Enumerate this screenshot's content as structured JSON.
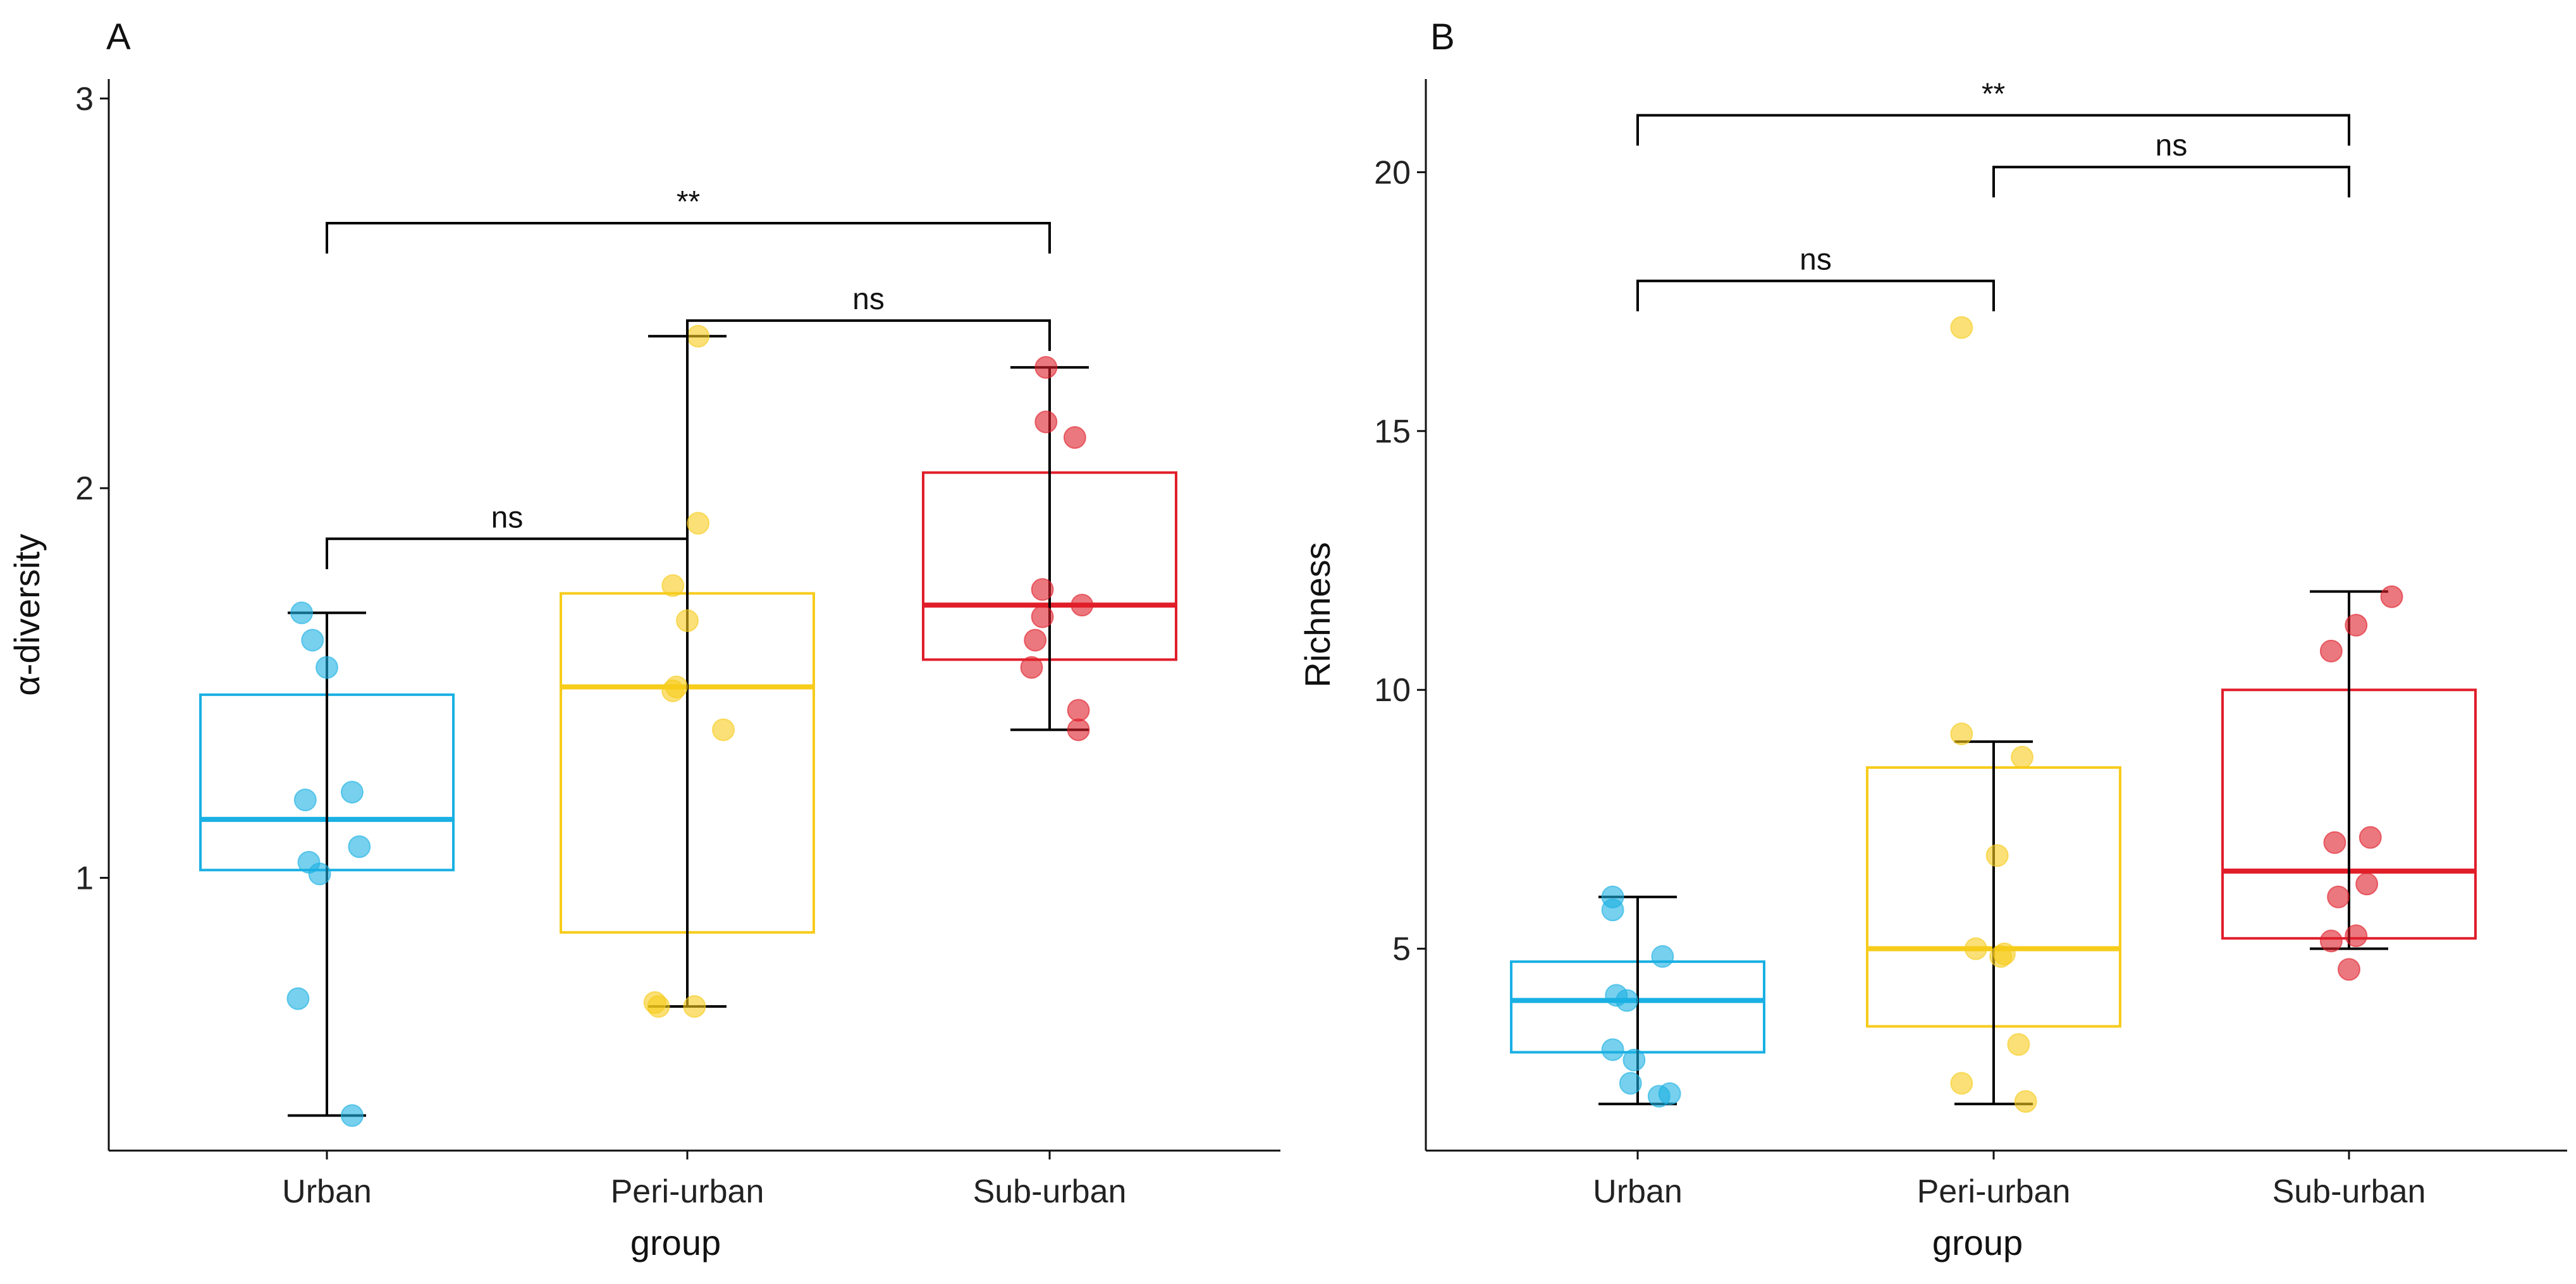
{
  "colors": {
    "Urban": "#1ab0e3",
    "Peri-urban": "#f7cc1a",
    "Sub-urban": "#e01e2a",
    "axis": "#111111"
  },
  "chart_data": [
    {
      "panel": "A",
      "type": "boxplot",
      "xlabel": "group",
      "ylabel": "α-diversity",
      "categories": [
        "Urban",
        "Peri-urban",
        "Sub-urban"
      ],
      "ylim": [
        0.3,
        3.05
      ],
      "yticks": [
        1,
        2,
        3
      ],
      "groups": [
        {
          "name": "Urban",
          "q1": 1.02,
          "median": 1.15,
          "q3": 1.47,
          "whisker_low": 0.39,
          "whisker_high": 1.68,
          "points": [
            [
              -0.07,
              1.68
            ],
            [
              -0.04,
              1.61
            ],
            [
              0.0,
              1.54
            ],
            [
              0.07,
              1.22
            ],
            [
              -0.06,
              1.2
            ],
            [
              0.09,
              1.08
            ],
            [
              -0.05,
              1.04
            ],
            [
              -0.02,
              1.01
            ],
            [
              -0.08,
              0.69
            ],
            [
              0.07,
              0.39
            ]
          ]
        },
        {
          "name": "Peri-urban",
          "q1": 0.86,
          "median": 1.49,
          "q3": 1.73,
          "whisker_low": 0.67,
          "whisker_high": 2.39,
          "points": [
            [
              0.03,
              2.39
            ],
            [
              0.03,
              1.91
            ],
            [
              -0.04,
              1.75
            ],
            [
              0.0,
              1.66
            ],
            [
              -0.03,
              1.49
            ],
            [
              -0.04,
              1.48
            ],
            [
              0.1,
              1.38
            ],
            [
              -0.09,
              0.68
            ],
            [
              -0.08,
              0.67
            ],
            [
              0.02,
              0.67
            ]
          ]
        },
        {
          "name": "Sub-urban",
          "q1": 1.56,
          "median": 1.7,
          "q3": 2.04,
          "whisker_low": 1.38,
          "whisker_high": 2.31,
          "points": [
            [
              -0.01,
              2.31
            ],
            [
              -0.01,
              2.17
            ],
            [
              0.07,
              2.13
            ],
            [
              -0.02,
              1.74
            ],
            [
              0.09,
              1.7
            ],
            [
              -0.02,
              1.67
            ],
            [
              -0.04,
              1.61
            ],
            [
              -0.05,
              1.54
            ],
            [
              0.08,
              1.43
            ],
            [
              0.08,
              1.38
            ]
          ]
        }
      ],
      "comparisons": [
        {
          "from": "Urban",
          "to": "Peri-urban",
          "y": 1.87,
          "label": "ns"
        },
        {
          "from": "Peri-urban",
          "to": "Sub-urban",
          "y": 2.43,
          "label": "ns"
        },
        {
          "from": "Urban",
          "to": "Sub-urban",
          "y": 2.68,
          "label": "**"
        }
      ]
    },
    {
      "panel": "B",
      "type": "boxplot",
      "xlabel": "group",
      "ylabel": "Richness",
      "categories": [
        "Urban",
        "Peri-urban",
        "Sub-urban"
      ],
      "ylim": [
        1.1,
        21.8
      ],
      "yticks": [
        5,
        10,
        15,
        20
      ],
      "groups": [
        {
          "name": "Urban",
          "q1": 3.0,
          "median": 4.0,
          "q3": 4.75,
          "whisker_low": 2.0,
          "whisker_high": 6.0,
          "points": [
            [
              -0.07,
              6.0
            ],
            [
              -0.07,
              5.75
            ],
            [
              0.07,
              4.85
            ],
            [
              -0.06,
              4.1
            ],
            [
              -0.03,
              4.0
            ],
            [
              -0.07,
              3.05
            ],
            [
              -0.01,
              2.85
            ],
            [
              -0.02,
              2.4
            ],
            [
              0.09,
              2.2
            ],
            [
              0.06,
              2.15
            ]
          ]
        },
        {
          "name": "Peri-urban",
          "q1": 3.5,
          "median": 5.0,
          "q3": 8.5,
          "whisker_low": 2.0,
          "whisker_high": 9.0,
          "points": [
            [
              -0.09,
              17.0
            ],
            [
              -0.09,
              9.15
            ],
            [
              0.08,
              8.7
            ],
            [
              0.01,
              6.8
            ],
            [
              -0.05,
              5.0
            ],
            [
              0.03,
              4.9
            ],
            [
              0.02,
              4.85
            ],
            [
              0.07,
              3.15
            ],
            [
              -0.09,
              2.4
            ],
            [
              0.09,
              2.05
            ]
          ]
        },
        {
          "name": "Sub-urban",
          "q1": 5.2,
          "median": 6.5,
          "q3": 10.0,
          "whisker_low": 5.0,
          "whisker_high": 11.9,
          "points": [
            [
              0.12,
              11.8
            ],
            [
              0.02,
              11.25
            ],
            [
              -0.05,
              10.75
            ],
            [
              0.06,
              7.15
            ],
            [
              -0.04,
              7.05
            ],
            [
              -0.03,
              6.0
            ],
            [
              0.05,
              6.25
            ],
            [
              0.02,
              5.25
            ],
            [
              -0.05,
              5.15
            ],
            [
              0.0,
              4.6
            ]
          ]
        }
      ],
      "comparisons": [
        {
          "from": "Urban",
          "to": "Peri-urban",
          "y": 17.9,
          "label": "ns"
        },
        {
          "from": "Peri-urban",
          "to": "Sub-urban",
          "y": 20.1,
          "label": "ns"
        },
        {
          "from": "Urban",
          "to": "Sub-urban",
          "y": 21.1,
          "label": "**"
        }
      ]
    }
  ]
}
